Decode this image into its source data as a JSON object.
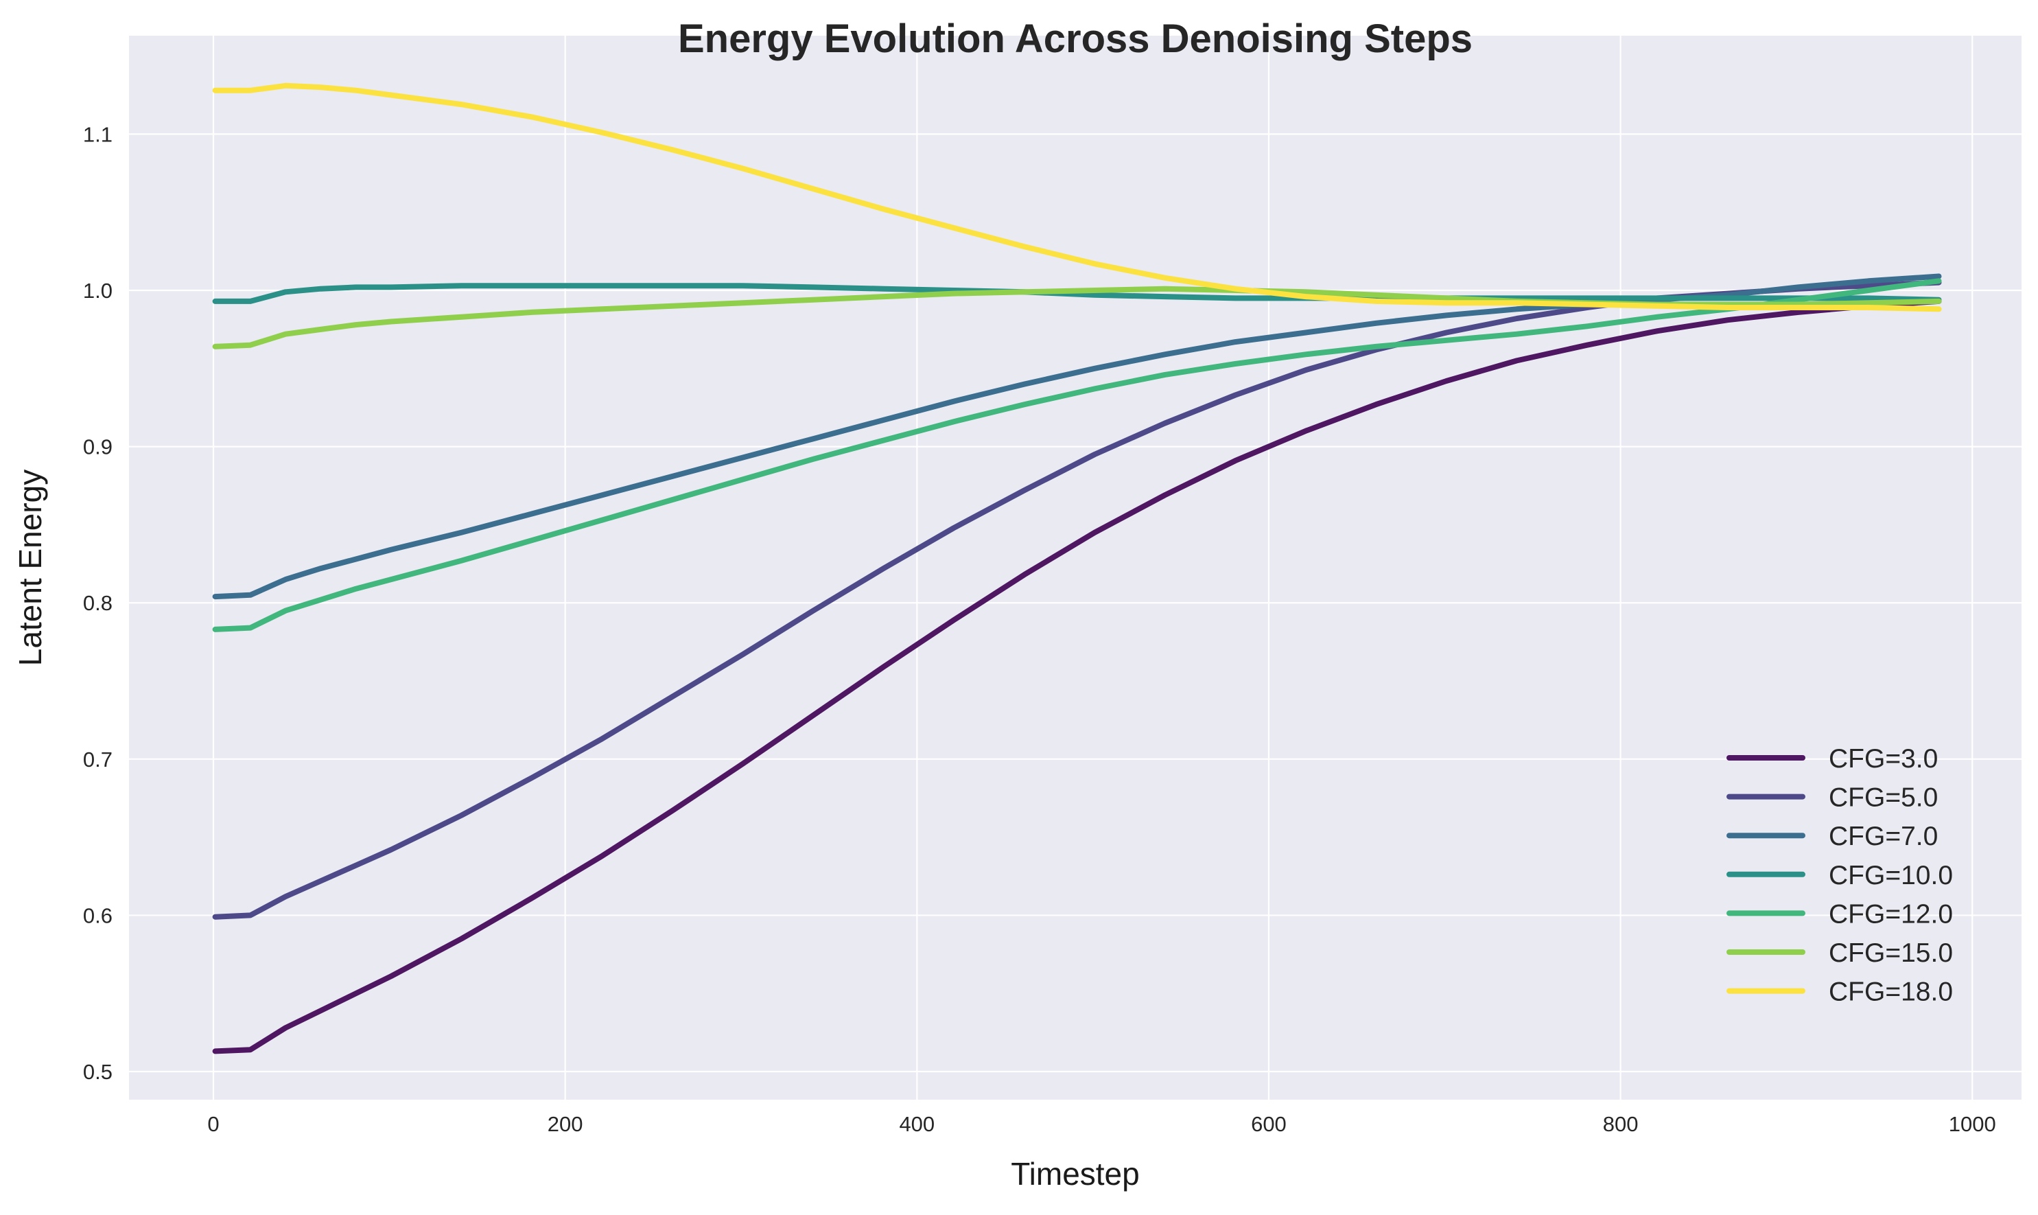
{
  "chart_data": {
    "type": "line",
    "title": "Energy Evolution Across Denoising Steps",
    "xlabel": "Timestep",
    "ylabel": "Latent Energy",
    "xlim": [
      -48,
      1028
    ],
    "ylim": [
      0.482,
      1.163
    ],
    "xticks": [
      0,
      200,
      400,
      600,
      800,
      1000
    ],
    "yticks": [
      0.5,
      0.6,
      0.7,
      0.8,
      0.9,
      1.0,
      1.1
    ],
    "xtick_labels": [
      "0",
      "200",
      "400",
      "600",
      "800",
      "1000"
    ],
    "ytick_labels": [
      "0.5",
      "0.6",
      "0.7",
      "0.8",
      "0.9",
      "1.0",
      "1.1"
    ],
    "grid": true,
    "legend_position": "lower-right",
    "background": "#eaeaf2",
    "x": [
      1,
      21,
      41,
      61,
      81,
      101,
      141,
      181,
      221,
      261,
      301,
      341,
      381,
      421,
      461,
      501,
      541,
      581,
      621,
      661,
      701,
      741,
      781,
      821,
      861,
      901,
      941,
      981
    ],
    "series": [
      {
        "name": "CFG=3.0",
        "color": "#4f1762",
        "values": [
          0.513,
          0.514,
          0.528,
          0.539,
          0.55,
          0.561,
          0.585,
          0.611,
          0.638,
          0.667,
          0.697,
          0.728,
          0.759,
          0.789,
          0.818,
          0.845,
          0.869,
          0.891,
          0.91,
          0.927,
          0.942,
          0.955,
          0.965,
          0.974,
          0.981,
          0.986,
          0.99,
          0.993
        ]
      },
      {
        "name": "CFG=5.0",
        "color": "#4e4a89",
        "values": [
          0.599,
          0.6,
          0.612,
          0.622,
          0.632,
          0.642,
          0.664,
          0.688,
          0.713,
          0.74,
          0.767,
          0.795,
          0.822,
          0.848,
          0.872,
          0.895,
          0.915,
          0.933,
          0.949,
          0.962,
          0.973,
          0.982,
          0.989,
          0.995,
          0.998,
          1.001,
          1.003,
          1.005
        ]
      },
      {
        "name": "CFG=7.0",
        "color": "#3b6e8f",
        "values": [
          0.804,
          0.805,
          0.815,
          0.822,
          0.828,
          0.834,
          0.845,
          0.857,
          0.869,
          0.881,
          0.893,
          0.905,
          0.917,
          0.929,
          0.94,
          0.95,
          0.959,
          0.967,
          0.973,
          0.979,
          0.984,
          0.988,
          0.991,
          0.994,
          0.997,
          1.002,
          1.006,
          1.009
        ]
      },
      {
        "name": "CFG=10.0",
        "color": "#2a9088",
        "values": [
          0.993,
          0.993,
          0.999,
          1.001,
          1.002,
          1.002,
          1.003,
          1.003,
          1.003,
          1.003,
          1.003,
          1.002,
          1.001,
          1.0,
          0.999,
          0.997,
          0.996,
          0.995,
          0.995,
          0.995,
          0.995,
          0.995,
          0.995,
          0.995,
          0.995,
          0.995,
          0.995,
          0.994
        ]
      },
      {
        "name": "CFG=12.0",
        "color": "#41b67d",
        "values": [
          0.783,
          0.784,
          0.795,
          0.802,
          0.809,
          0.815,
          0.827,
          0.84,
          0.853,
          0.866,
          0.879,
          0.892,
          0.904,
          0.916,
          0.927,
          0.937,
          0.946,
          0.953,
          0.959,
          0.964,
          0.968,
          0.972,
          0.977,
          0.983,
          0.988,
          0.994,
          1.0,
          1.006
        ]
      },
      {
        "name": "CFG=15.0",
        "color": "#8fcf4c",
        "values": [
          0.964,
          0.965,
          0.972,
          0.975,
          0.978,
          0.98,
          0.983,
          0.986,
          0.988,
          0.99,
          0.992,
          0.994,
          0.996,
          0.998,
          0.999,
          1.0,
          1.001,
          1.0,
          0.999,
          0.997,
          0.995,
          0.993,
          0.992,
          0.991,
          0.991,
          0.991,
          0.992,
          0.993
        ]
      },
      {
        "name": "CFG=18.0",
        "color": "#fbe241",
        "values": [
          1.128,
          1.128,
          1.131,
          1.13,
          1.128,
          1.125,
          1.119,
          1.111,
          1.101,
          1.09,
          1.078,
          1.065,
          1.052,
          1.04,
          1.028,
          1.017,
          1.008,
          1.001,
          0.996,
          0.993,
          0.992,
          0.992,
          0.991,
          0.99,
          0.989,
          0.989,
          0.989,
          0.988
        ]
      }
    ]
  }
}
